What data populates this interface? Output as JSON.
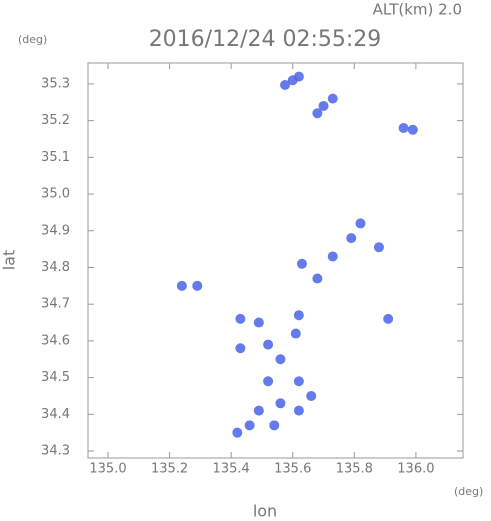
{
  "chart_data": {
    "type": "scatter",
    "title": "2016/12/24 02:55:29",
    "subtitle": "ALT(km) 2.0",
    "x_label": "lon",
    "y_label": "lat",
    "x_unit": "(deg)",
    "y_unit": "(deg)",
    "x": [
      135.6,
      135.62,
      135.575,
      135.7,
      135.73,
      135.68,
      135.96,
      135.99,
      135.82,
      135.79,
      135.88,
      135.73,
      135.63,
      135.68,
      135.29,
      135.24,
      135.91,
      135.43,
      135.49,
      135.62,
      135.52,
      135.61,
      135.43,
      135.56,
      135.62,
      135.52,
      135.66,
      135.56,
      135.49,
      135.62,
      135.46,
      135.42,
      135.54
    ],
    "values": [
      35.31,
      35.32,
      35.297,
      35.24,
      35.26,
      35.22,
      35.18,
      35.175,
      34.92,
      34.88,
      34.855,
      34.83,
      34.81,
      34.77,
      34.75,
      34.75,
      34.66,
      34.66,
      34.65,
      34.67,
      34.59,
      34.62,
      34.58,
      34.55,
      34.49,
      34.49,
      34.45,
      34.43,
      34.41,
      34.41,
      34.37,
      34.35,
      34.37
    ],
    "color": "#4a63e8",
    "xlim": [
      134.935,
      136.153
    ],
    "ylim": [
      34.281,
      35.357
    ],
    "xticks": [
      {
        "value": 135,
        "label": "135.0"
      },
      135.2,
      135.4,
      135.6,
      135.8,
      {
        "value": 136,
        "label": "136.0"
      }
    ],
    "yticks": [
      34.3,
      34.4,
      34.5,
      34.6,
      34.7,
      34.8,
      34.9,
      {
        "value": 35,
        "label": "35.0"
      },
      35.1,
      35.2,
      35.3
    ]
  }
}
